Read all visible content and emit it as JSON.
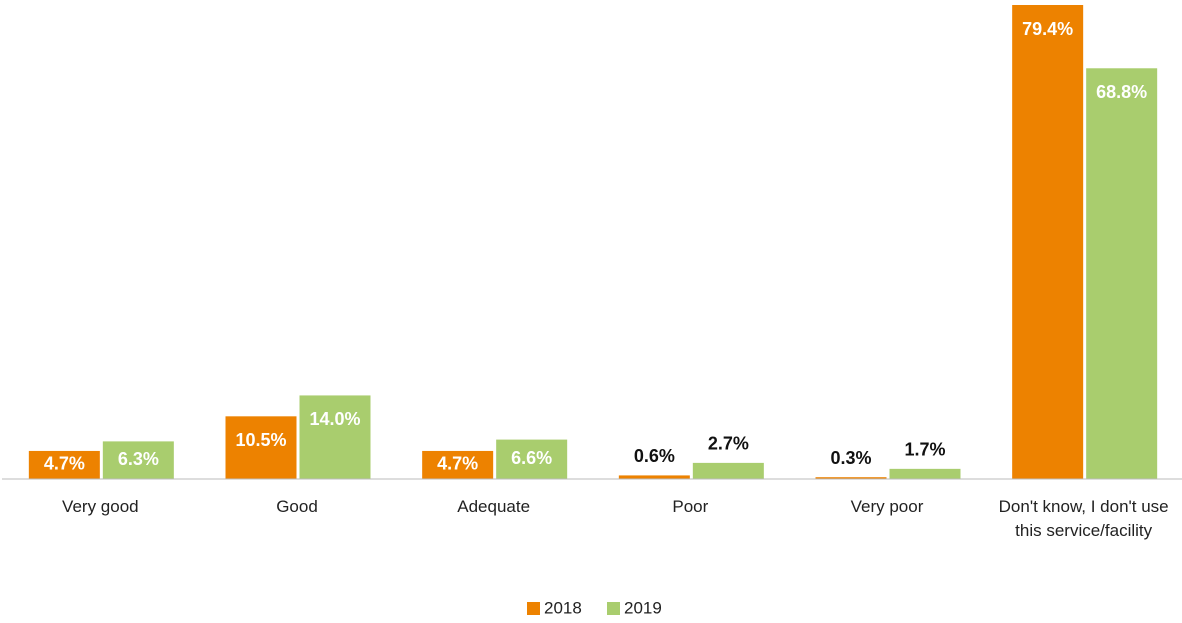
{
  "chart_data": {
    "type": "bar",
    "categories": [
      "Very good",
      "Good",
      "Adequate",
      "Poor",
      "Very poor",
      "Don't know, I don't use this service/facility"
    ],
    "series": [
      {
        "name": "2018",
        "color": "#ed8200",
        "values": [
          4.7,
          10.5,
          4.7,
          0.6,
          0.3,
          79.4
        ],
        "value_labels": [
          "4.7%",
          "10.5%",
          "4.7%",
          "0.6%",
          "0.3%",
          "79.4%"
        ]
      },
      {
        "name": "2019",
        "color": "#a9cd6e",
        "values": [
          6.3,
          14.0,
          6.6,
          2.7,
          1.7,
          68.8
        ],
        "value_labels": [
          "6.3%",
          "14.0%",
          "6.6%",
          "2.7%",
          "1.7%",
          "68.8%"
        ]
      }
    ],
    "legend": "bottom"
  }
}
